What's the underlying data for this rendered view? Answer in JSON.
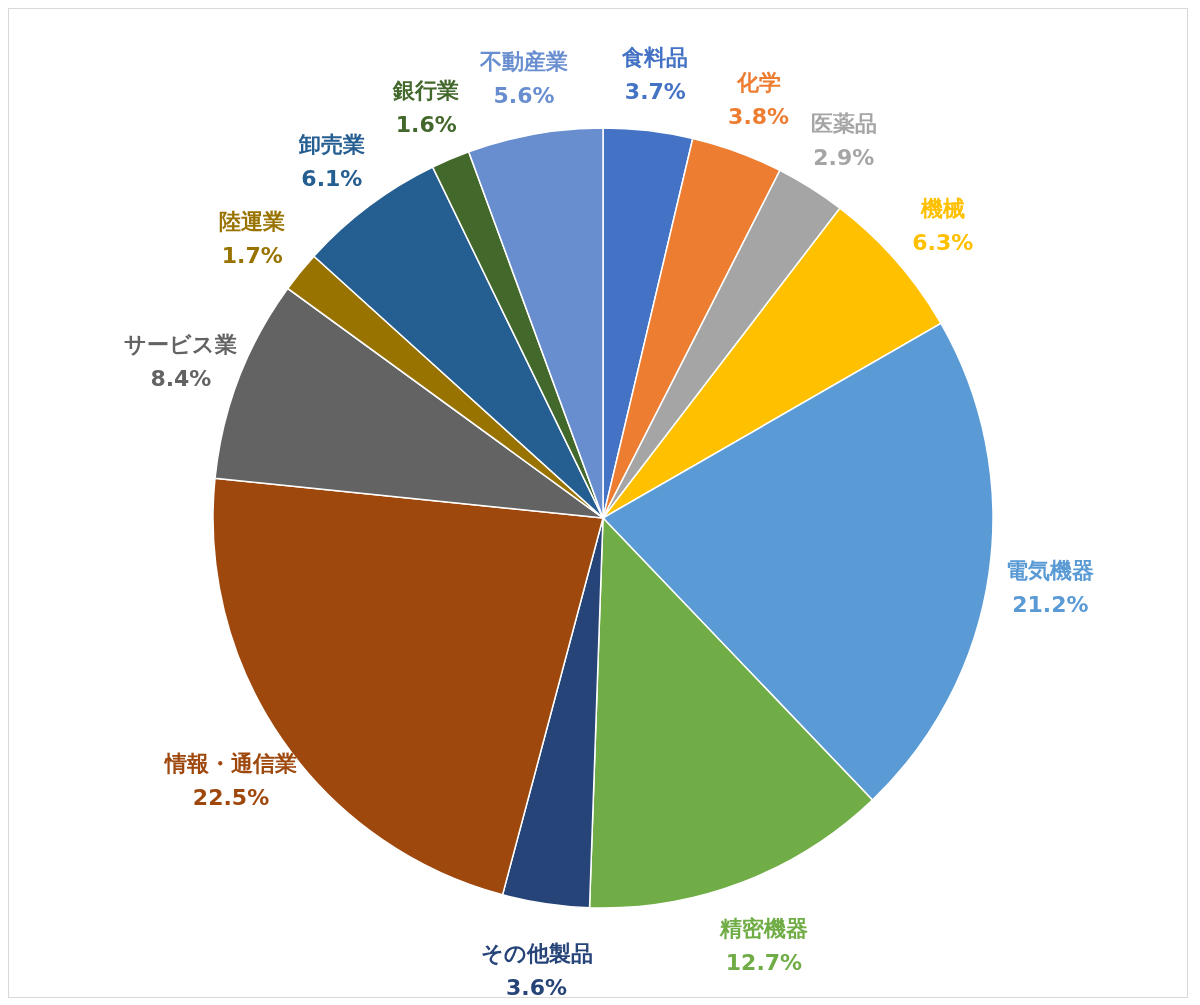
{
  "chart_data": {
    "type": "pie",
    "categories": [
      "食料品",
      "化学",
      "医薬品",
      "機械",
      "電気機器",
      "精密機器",
      "その他製品",
      "情報・通信業",
      "サービス業",
      "陸運業",
      "卸売業",
      "銀行業",
      "不動産業"
    ],
    "values": [
      3.7,
      3.8,
      2.9,
      6.3,
      21.2,
      12.7,
      3.6,
      22.5,
      8.4,
      1.7,
      6.1,
      1.6,
      5.6
    ],
    "colors": [
      "#4472c4",
      "#ed7d31",
      "#a5a5a5",
      "#ffc000",
      "#5b9bd5",
      "#70ad47",
      "#264478",
      "#9e480e",
      "#636363",
      "#997300",
      "#255e91",
      "#43682b",
      "#698ed0"
    ],
    "value_labels": [
      "3.7%",
      "3.8%",
      "2.9%",
      "6.3%",
      "21.2%",
      "12.7%",
      "3.6%",
      "22.5%",
      "8.4%",
      "1.7%",
      "6.1%",
      "1.6%",
      "5.6%"
    ]
  }
}
